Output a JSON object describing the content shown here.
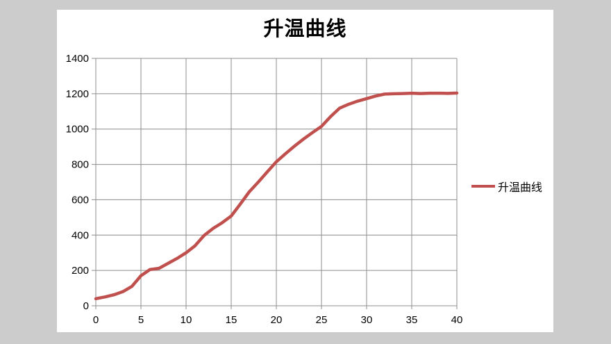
{
  "window": {
    "background_color": "#CCCCCC",
    "panel_color": "#FFFFFF"
  },
  "chart_data": {
    "type": "line",
    "title": "升温曲线",
    "xlabel": "",
    "ylabel": "",
    "xlim": [
      0,
      40
    ],
    "ylim": [
      0,
      1400
    ],
    "x_ticks": [
      0,
      5,
      10,
      15,
      20,
      25,
      30,
      35,
      40
    ],
    "y_ticks": [
      0,
      200,
      400,
      600,
      800,
      1000,
      1200,
      1400
    ],
    "grid": true,
    "gridline_color": "#8C8C8C",
    "legend": {
      "position": "right",
      "entries": [
        {
          "label": "升温曲线",
          "color": "#C0504D"
        }
      ]
    },
    "x": [
      0,
      1,
      2,
      3,
      4,
      5,
      6,
      7,
      8,
      9,
      10,
      11,
      12,
      13,
      14,
      15,
      16,
      17,
      18,
      19,
      20,
      21,
      22,
      23,
      24,
      25,
      26,
      27,
      28,
      29,
      30,
      31,
      32,
      33,
      34,
      35,
      36,
      37,
      38,
      39,
      40
    ],
    "series": [
      {
        "name": "升温曲线",
        "color": "#C0504D",
        "line_width": 4.5,
        "values": [
          40,
          50,
          62,
          80,
          110,
          170,
          205,
          212,
          240,
          268,
          300,
          340,
          398,
          438,
          470,
          508,
          575,
          645,
          700,
          758,
          815,
          860,
          903,
          943,
          980,
          1015,
          1070,
          1118,
          1140,
          1158,
          1172,
          1187,
          1198,
          1200,
          1201,
          1203,
          1201,
          1203,
          1203,
          1202,
          1204
        ]
      }
    ]
  }
}
